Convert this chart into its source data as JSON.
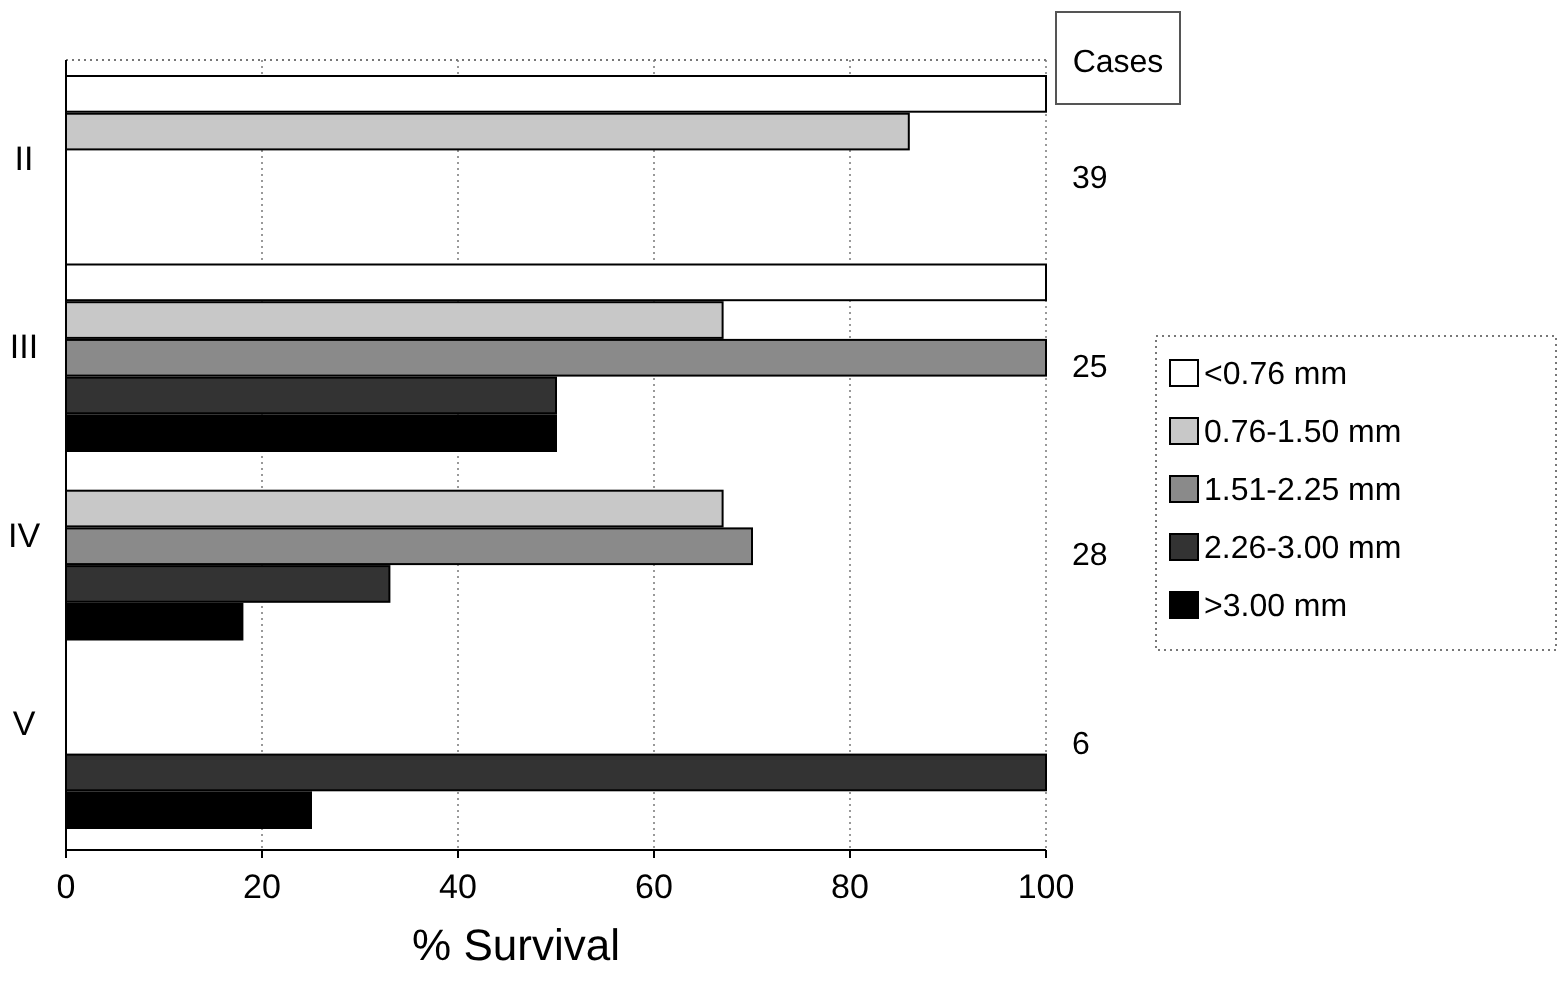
{
  "chart_data": {
    "type": "bar",
    "orientation": "horizontal",
    "xlabel": "% Survival",
    "categories": [
      "II",
      "III",
      "IV",
      "V"
    ],
    "series": [
      {
        "name": "<0.76 mm",
        "color": "#ffffff",
        "values": [
          100,
          100,
          null,
          null
        ]
      },
      {
        "name": "0.76-1.50 mm",
        "color": "#c8c8c8",
        "values": [
          86,
          67,
          67,
          null
        ]
      },
      {
        "name": "1.51-2.25 mm",
        "color": "#8a8a8a",
        "values": [
          null,
          100,
          70,
          null
        ]
      },
      {
        "name": "2.26-3.00 mm",
        "color": "#333333",
        "values": [
          null,
          50,
          33,
          100
        ]
      },
      {
        "name": ">3.00 mm",
        "color": "#000000",
        "values": [
          null,
          50,
          18,
          25
        ]
      }
    ],
    "xlim": [
      0,
      100
    ],
    "xticks": [
      0,
      20,
      40,
      60,
      80,
      100
    ],
    "grid": "x",
    "legend": "right",
    "annotations": [
      "Cases",
      "39",
      "25",
      "28",
      "6"
    ]
  }
}
